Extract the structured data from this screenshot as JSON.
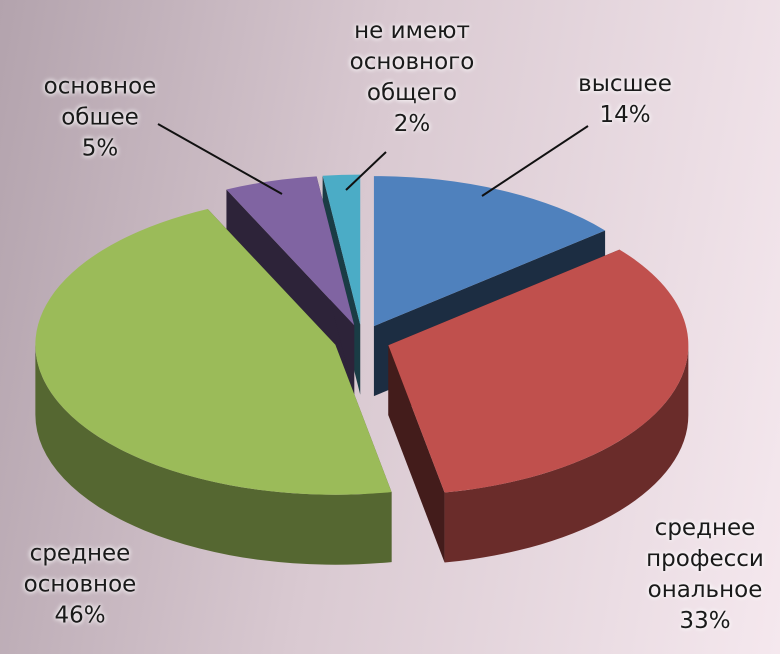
{
  "chart_data": {
    "type": "pie",
    "categories": [
      "высшее",
      "среднее\nпрофесси\nональное",
      "среднее\nосновное",
      "основное\nобшее",
      "не имеют\nосновного\nобщего"
    ],
    "values": [
      14,
      33,
      46,
      5,
      2
    ],
    "value_labels": [
      "14%",
      "33%",
      "46%",
      "5%",
      "2%"
    ],
    "colors": [
      "#4f81bd",
      "#c0504d",
      "#9bbb59",
      "#8064a2",
      "#4bacc6"
    ]
  }
}
